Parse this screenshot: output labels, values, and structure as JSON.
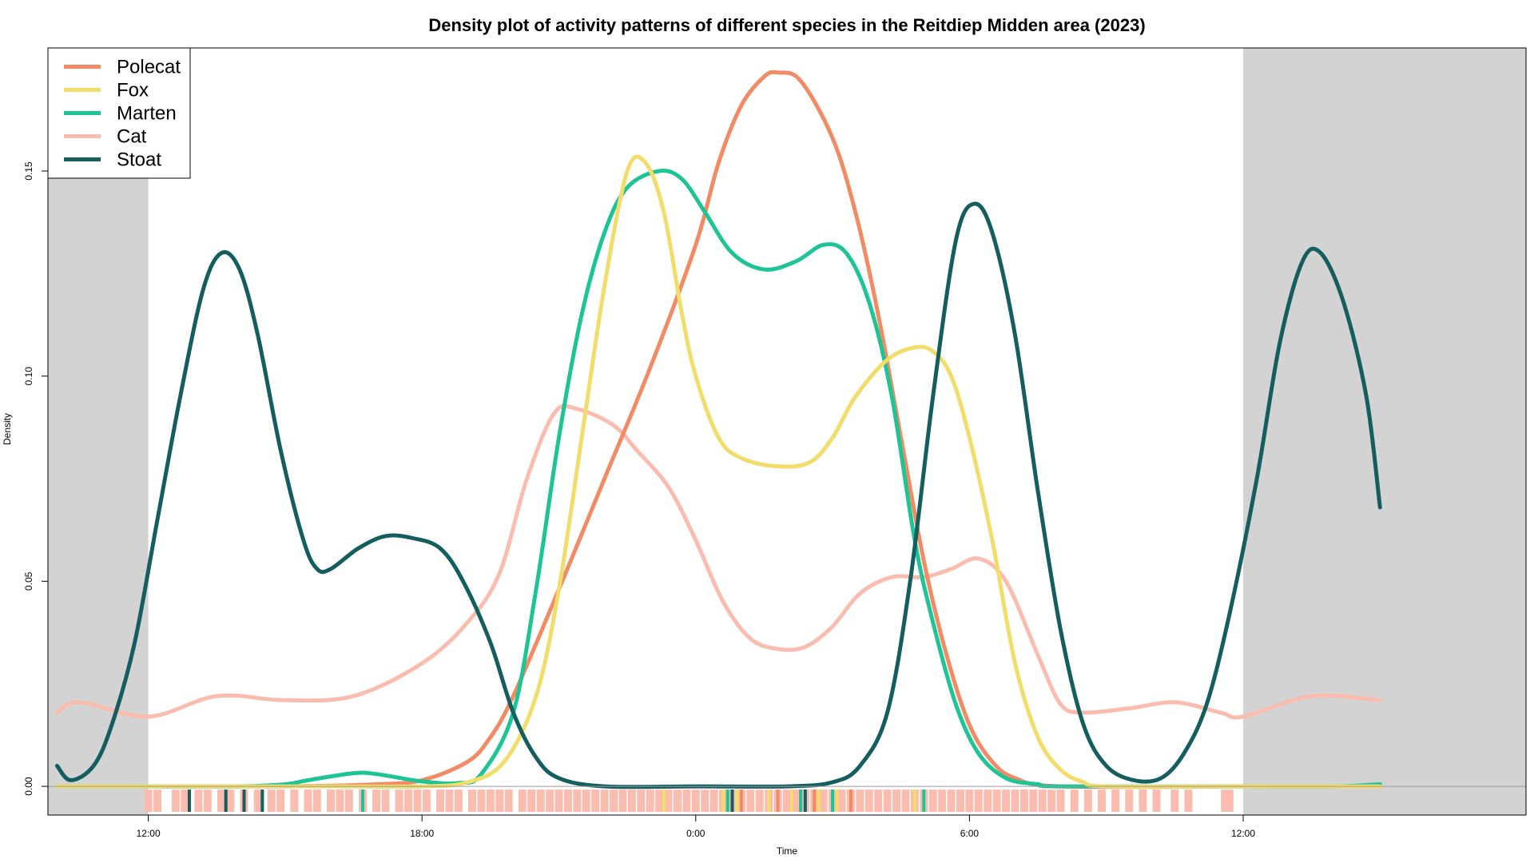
{
  "chart_data": {
    "type": "line",
    "title": "Density plot of activity patterns of different species in the Reitdiep Midden area (2023)",
    "xlabel": "Time",
    "ylabel": "Density",
    "x_unit": "hours relative to 0:00",
    "xlim": [
      -14.2,
      18.2
    ],
    "ylim": [
      -0.007,
      0.18
    ],
    "x_ticks": [
      {
        "value": -12,
        "label": "12:00"
      },
      {
        "value": -6,
        "label": "18:00"
      },
      {
        "value": 0,
        "label": "0:00"
      },
      {
        "value": 6,
        "label": "6:00"
      },
      {
        "value": 12,
        "label": "12:00"
      }
    ],
    "y_ticks": [
      {
        "value": 0.0,
        "label": "0.00"
      },
      {
        "value": 0.05,
        "label": "0.05"
      },
      {
        "value": 0.1,
        "label": "0.10"
      },
      {
        "value": 0.15,
        "label": "0.15"
      }
    ],
    "shaded_ranges": [
      [
        -14.2,
        -12
      ],
      [
        12,
        18.2
      ]
    ],
    "grid": false,
    "legend_position": "top-left",
    "series": [
      {
        "name": "Polecat",
        "color": "#F28B63",
        "points": [
          [
            -15,
            0
          ],
          [
            -12,
            0
          ],
          [
            -9,
            0
          ],
          [
            -7,
            0.0005
          ],
          [
            -6,
            0.0015
          ],
          [
            -5,
            0.006
          ],
          [
            -4.5,
            0.012
          ],
          [
            -4,
            0.022
          ],
          [
            -3,
            0.048
          ],
          [
            -2,
            0.075
          ],
          [
            -1,
            0.102
          ],
          [
            0,
            0.132
          ],
          [
            0.5,
            0.152
          ],
          [
            1,
            0.166
          ],
          [
            1.5,
            0.173
          ],
          [
            1.8,
            0.174
          ],
          [
            2.3,
            0.172
          ],
          [
            3,
            0.158
          ],
          [
            3.5,
            0.14
          ],
          [
            4,
            0.115
          ],
          [
            4.5,
            0.085
          ],
          [
            5,
            0.055
          ],
          [
            5.5,
            0.032
          ],
          [
            6,
            0.015
          ],
          [
            6.5,
            0.006
          ],
          [
            7,
            0.002
          ],
          [
            8,
            0
          ],
          [
            12,
            0
          ],
          [
            15,
            0
          ]
        ]
      },
      {
        "name": "Fox",
        "color": "#F2DD6A",
        "points": [
          [
            -15,
            0
          ],
          [
            -12,
            0
          ],
          [
            -8,
            0
          ],
          [
            -6,
            0
          ],
          [
            -5,
            0.001
          ],
          [
            -4.2,
            0.006
          ],
          [
            -3.5,
            0.022
          ],
          [
            -3,
            0.048
          ],
          [
            -2.5,
            0.085
          ],
          [
            -2,
            0.122
          ],
          [
            -1.5,
            0.15
          ],
          [
            -1.1,
            0.152
          ],
          [
            -0.7,
            0.14
          ],
          [
            -0.3,
            0.115
          ],
          [
            0,
            0.1
          ],
          [
            0.5,
            0.085
          ],
          [
            1,
            0.08
          ],
          [
            1.8,
            0.078
          ],
          [
            2.5,
            0.079
          ],
          [
            3,
            0.085
          ],
          [
            3.5,
            0.095
          ],
          [
            4.2,
            0.104
          ],
          [
            4.8,
            0.107
          ],
          [
            5.2,
            0.106
          ],
          [
            5.6,
            0.1
          ],
          [
            6,
            0.085
          ],
          [
            6.5,
            0.06
          ],
          [
            7,
            0.03
          ],
          [
            7.5,
            0.012
          ],
          [
            8,
            0.004
          ],
          [
            8.5,
            0.001
          ],
          [
            9,
            0
          ],
          [
            12,
            0
          ],
          [
            15,
            0
          ]
        ]
      },
      {
        "name": "Marten",
        "color": "#1CC496",
        "points": [
          [
            -15,
            0
          ],
          [
            -12,
            0
          ],
          [
            -10,
            0
          ],
          [
            -9,
            0.0005
          ],
          [
            -8.5,
            0.0015
          ],
          [
            -7.5,
            0.0032
          ],
          [
            -7,
            0.003
          ],
          [
            -6,
            0.0012
          ],
          [
            -5.2,
            0.0008
          ],
          [
            -4.7,
            0.003
          ],
          [
            -4,
            0.018
          ],
          [
            -3.5,
            0.048
          ],
          [
            -3,
            0.085
          ],
          [
            -2.5,
            0.115
          ],
          [
            -2,
            0.135
          ],
          [
            -1.5,
            0.146
          ],
          [
            -0.8,
            0.15
          ],
          [
            -0.3,
            0.148
          ],
          [
            0.2,
            0.14
          ],
          [
            0.8,
            0.13
          ],
          [
            1.5,
            0.126
          ],
          [
            2.2,
            0.128
          ],
          [
            2.8,
            0.132
          ],
          [
            3.3,
            0.13
          ],
          [
            3.8,
            0.118
          ],
          [
            4.3,
            0.095
          ],
          [
            4.8,
            0.06
          ],
          [
            5.2,
            0.04
          ],
          [
            5.7,
            0.02
          ],
          [
            6.2,
            0.008
          ],
          [
            6.8,
            0.002
          ],
          [
            7.5,
            0.0005
          ],
          [
            8,
            0
          ],
          [
            12,
            0
          ],
          [
            14,
            0
          ],
          [
            15,
            0.0005
          ]
        ]
      },
      {
        "name": "Cat",
        "color": "#FBBCB0",
        "points": [
          [
            -15,
            0.018
          ],
          [
            -13.5,
            0.0205
          ],
          [
            -12,
            0.017
          ],
          [
            -10.5,
            0.022
          ],
          [
            -9,
            0.021
          ],
          [
            -7.5,
            0.022
          ],
          [
            -6,
            0.03
          ],
          [
            -5,
            0.04
          ],
          [
            -4.3,
            0.052
          ],
          [
            -3.7,
            0.075
          ],
          [
            -3.1,
            0.091
          ],
          [
            -2.6,
            0.092
          ],
          [
            -1.8,
            0.088
          ],
          [
            -1.3,
            0.082
          ],
          [
            -0.6,
            0.073
          ],
          [
            0,
            0.06
          ],
          [
            0.6,
            0.045
          ],
          [
            1.2,
            0.036
          ],
          [
            1.8,
            0.0335
          ],
          [
            2.4,
            0.034
          ],
          [
            3,
            0.039
          ],
          [
            3.6,
            0.047
          ],
          [
            4.3,
            0.051
          ],
          [
            5,
            0.051
          ],
          [
            5.6,
            0.053
          ],
          [
            6.2,
            0.0555
          ],
          [
            6.8,
            0.05
          ],
          [
            7.5,
            0.032
          ],
          [
            8,
            0.02
          ],
          [
            8.5,
            0.018
          ],
          [
            9.5,
            0.019
          ],
          [
            10.5,
            0.0205
          ],
          [
            11.5,
            0.018
          ],
          [
            12,
            0.017
          ],
          [
            13.5,
            0.022
          ],
          [
            15,
            0.021
          ]
        ]
      },
      {
        "name": "Stoat",
        "color": "#155E60",
        "points": [
          [
            -15,
            0.005
          ],
          [
            -14.5,
            0.002
          ],
          [
            -13.7,
            0.0015
          ],
          [
            -13.2,
            0.005
          ],
          [
            -12.8,
            0.015
          ],
          [
            -12.3,
            0.035
          ],
          [
            -11.8,
            0.065
          ],
          [
            -11.3,
            0.095
          ],
          [
            -10.8,
            0.121
          ],
          [
            -10.4,
            0.13
          ],
          [
            -10,
            0.126
          ],
          [
            -9.6,
            0.11
          ],
          [
            -9.1,
            0.082
          ],
          [
            -8.6,
            0.06
          ],
          [
            -8.3,
            0.053
          ],
          [
            -8,
            0.053
          ],
          [
            -7.4,
            0.058
          ],
          [
            -6.8,
            0.061
          ],
          [
            -6.2,
            0.0605
          ],
          [
            -5.6,
            0.058
          ],
          [
            -5.1,
            0.05
          ],
          [
            -4.5,
            0.035
          ],
          [
            -4,
            0.018
          ],
          [
            -3.5,
            0.007
          ],
          [
            -3,
            0.002
          ],
          [
            -2,
            0
          ],
          [
            0,
            0
          ],
          [
            2,
            0
          ],
          [
            3,
            0.001
          ],
          [
            3.6,
            0.005
          ],
          [
            4.2,
            0.018
          ],
          [
            4.7,
            0.05
          ],
          [
            5.2,
            0.095
          ],
          [
            5.7,
            0.133
          ],
          [
            6.1,
            0.142
          ],
          [
            6.5,
            0.135
          ],
          [
            7,
            0.11
          ],
          [
            7.5,
            0.072
          ],
          [
            8,
            0.038
          ],
          [
            8.5,
            0.015
          ],
          [
            9,
            0.005
          ],
          [
            9.6,
            0.0015
          ],
          [
            10.2,
            0.002
          ],
          [
            10.7,
            0.008
          ],
          [
            11.2,
            0.02
          ],
          [
            11.7,
            0.042
          ],
          [
            12.3,
            0.075
          ],
          [
            12.8,
            0.108
          ],
          [
            13.3,
            0.128
          ],
          [
            13.7,
            0.13
          ],
          [
            14.2,
            0.118
          ],
          [
            14.7,
            0.095
          ],
          [
            15,
            0.068
          ]
        ]
      }
    ],
    "rug": [
      {
        "series": "Cat",
        "x": [
          -12.0,
          -11.8,
          -11.4,
          -11.2,
          -10.9,
          -10.7,
          -10.4,
          -10.2,
          -9.9,
          -9.6,
          -9.3,
          -9.1,
          -8.8,
          -8.5,
          -8.3,
          -8.0,
          -7.8,
          -7.6,
          -7.3,
          -7.0,
          -6.8,
          -6.5,
          -6.3,
          -6.1,
          -5.9,
          -5.6,
          -5.4,
          -5.2,
          -4.9,
          -4.7,
          -4.5,
          -4.3,
          -4.1,
          -3.8,
          -3.6,
          -3.4,
          -3.2,
          -3.0,
          -2.8,
          -2.6,
          -2.4,
          -2.2,
          -2.0,
          -1.8,
          -1.6,
          -1.4,
          -1.2,
          -1.0,
          -0.8,
          -0.6,
          -0.4,
          -0.2,
          0.0,
          0.2,
          0.4,
          0.6,
          0.8,
          1.0,
          1.2,
          1.4,
          1.6,
          1.8,
          2.0,
          2.2,
          2.4,
          2.6,
          2.8,
          3.0,
          3.2,
          3.4,
          3.6,
          3.8,
          4.0,
          4.2,
          4.4,
          4.6,
          4.8,
          5.0,
          5.2,
          5.4,
          5.6,
          5.8,
          6.0,
          6.2,
          6.4,
          6.6,
          6.8,
          7.0,
          7.2,
          7.4,
          7.6,
          7.8,
          8.0,
          8.3,
          8.6,
          8.9,
          9.2,
          9.5,
          9.8,
          10.1,
          10.5,
          10.8,
          11.6,
          11.7
        ]
      },
      {
        "series": "Fox",
        "x": [
          -0.7,
          0.6,
          0.9,
          1.6,
          2.1,
          2.7,
          3.1,
          4.8
        ]
      },
      {
        "series": "Marten",
        "x": [
          -7.3,
          0.7,
          2.3,
          3.0,
          5.0
        ]
      },
      {
        "series": "Stoat",
        "x": [
          -11.1,
          -10.3,
          -9.9,
          -9.5,
          0.8,
          2.4
        ]
      },
      {
        "series": "Polecat",
        "x": [
          1.0,
          1.8,
          2.6,
          3.4
        ]
      }
    ]
  }
}
